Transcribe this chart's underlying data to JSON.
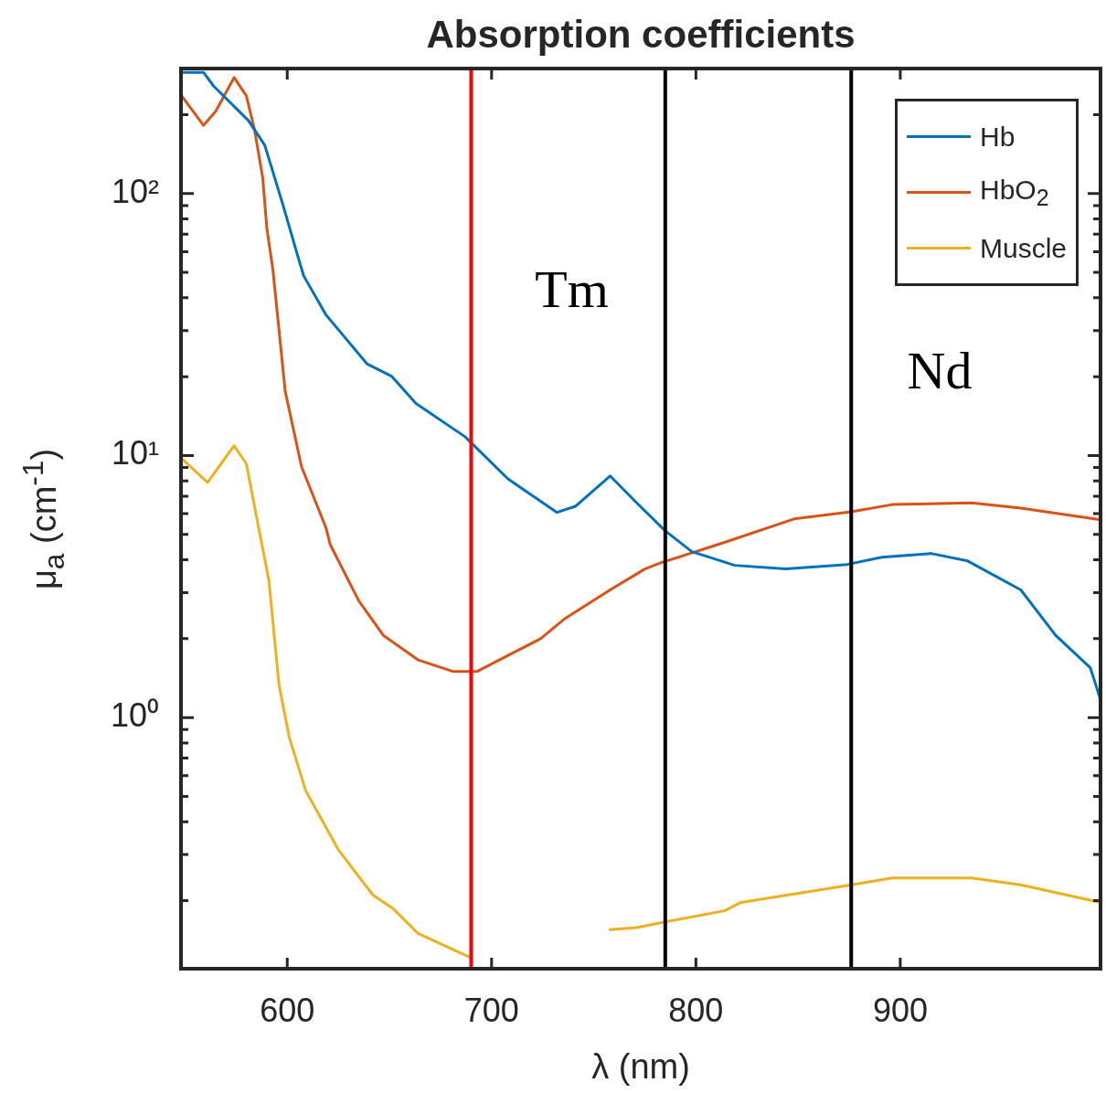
{
  "chart_data": {
    "type": "line",
    "title": "Absorption coefficients",
    "xlabel": "λ (nm)",
    "ylabel": "μ$_{a}$ (cm$^{-1}$)",
    "xlim": [
      548,
      998
    ],
    "xticks": [
      600,
      700,
      800,
      900
    ],
    "ylim": [
      0.11,
      300
    ],
    "log": "y",
    "yticks": [
      {
        "value": 0.2,
        "label": null
      },
      {
        "value": 0.3,
        "label": null
      },
      {
        "value": 0.4,
        "label": null
      },
      {
        "value": 0.5,
        "label": null
      },
      {
        "value": 0.6,
        "label": null
      },
      {
        "value": 0.7,
        "label": null
      },
      {
        "value": 0.8,
        "label": null
      },
      {
        "value": 0.9,
        "label": null
      },
      {
        "value": 1,
        "label": "10⁰"
      },
      {
        "value": 2,
        "label": null
      },
      {
        "value": 3,
        "label": null
      },
      {
        "value": 4,
        "label": null
      },
      {
        "value": 5,
        "label": null
      },
      {
        "value": 6,
        "label": null
      },
      {
        "value": 7,
        "label": null
      },
      {
        "value": 8,
        "label": null
      },
      {
        "value": 9,
        "label": null
      },
      {
        "value": 10,
        "label": "10¹"
      },
      {
        "value": 20,
        "label": null
      },
      {
        "value": 30,
        "label": null
      },
      {
        "value": 40,
        "label": null
      },
      {
        "value": 50,
        "label": null
      },
      {
        "value": 60,
        "label": null
      },
      {
        "value": 70,
        "label": null
      },
      {
        "value": 80,
        "label": null
      },
      {
        "value": 90,
        "label": null
      },
      {
        "value": 100,
        "label": "10²"
      },
      {
        "value": 200,
        "label": null
      },
      {
        "value": 300,
        "label": null
      }
    ],
    "grid": false,
    "legend": "top right",
    "marker": "none",
    "line_style": "solid",
    "series": [
      {
        "name": "Hb",
        "color": "#0072bd",
        "x": [
          548,
          559,
          564,
          581,
          589,
          598,
          604,
          608,
          619,
          639,
          651,
          663,
          687,
          708,
          732,
          741,
          758,
          771,
          785,
          798,
          819,
          844,
          874,
          891,
          915,
          933,
          959,
          976,
          993,
          998
        ],
        "values": [
          290,
          290,
          257,
          190,
          153,
          90,
          62,
          48.6,
          34.4,
          22.4,
          20.1,
          15.8,
          11.8,
          8.15,
          6.07,
          6.4,
          8.36,
          6.6,
          5.16,
          4.3,
          3.81,
          3.69,
          3.84,
          4.09,
          4.23,
          3.96,
          3.07,
          2.06,
          1.55,
          1.17
        ]
      },
      {
        "name": "HbO$_{2}$",
        "color": "#d95319",
        "x": [
          548,
          559,
          565,
          574,
          580,
          584,
          588,
          590,
          593,
          596,
          599,
          607,
          619,
          621,
          635,
          647,
          664,
          681,
          693,
          707,
          724,
          736,
          758,
          775,
          783,
          814,
          848,
          876,
          896,
          935,
          959,
          998
        ],
        "values": [
          238,
          182,
          206,
          277,
          236,
          175,
          115,
          74,
          51,
          30,
          17.6,
          9.06,
          5.29,
          4.58,
          2.79,
          2.06,
          1.66,
          1.5,
          1.5,
          1.71,
          2.0,
          2.39,
          3.07,
          3.69,
          3.9,
          4.66,
          5.73,
          6.1,
          6.5,
          6.6,
          6.3,
          5.69
        ]
      },
      {
        "name": "Muscle",
        "color": "#edb120",
        "x": [
          548,
          561,
          574,
          580,
          586,
          591,
          596,
          601,
          609,
          625,
          642,
          652,
          664,
          690,
          702,
          729,
          758,
          771,
          785,
          814,
          822,
          876,
          896,
          935,
          959,
          998
        ],
        "values": [
          9.8,
          7.9,
          10.9,
          9.3,
          5.3,
          3.35,
          1.33,
          0.84,
          0.527,
          0.313,
          0.21,
          0.186,
          0.15,
          0.121,
          null,
          null,
          0.155,
          0.158,
          0.166,
          0.183,
          0.197,
          0.23,
          0.244,
          0.244,
          0.23,
          0.197
        ]
      }
    ],
    "ref_lines": [
      {
        "axis": "x",
        "value": 690,
        "color": "#ff0000"
      },
      {
        "axis": "x",
        "value": 785,
        "color": "#000000"
      },
      {
        "axis": "x",
        "value": 876,
        "color": "#000000"
      }
    ],
    "annotations": [
      "Tm",
      "Nd"
    ]
  }
}
